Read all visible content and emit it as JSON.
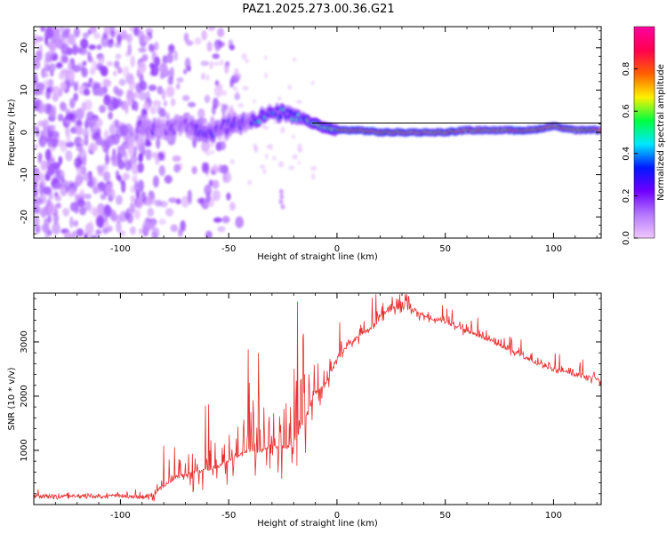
{
  "title": "PAZ1.2025.273.00.36.G21",
  "chart_data": [
    {
      "type": "heatmap",
      "xlabel": "Height of straight line (km)",
      "ylabel": "Frequency (Hz)",
      "xlim": [
        -140,
        122
      ],
      "ylim": [
        -25,
        25
      ],
      "xticks": [
        -100,
        -50,
        0,
        50,
        100
      ],
      "yticks": [
        -20,
        -10,
        0,
        10,
        20
      ],
      "ridge": {
        "x": [
          -140,
          -120,
          -100,
          -90,
          -80,
          -70,
          -60,
          -50,
          -40,
          -30,
          -25,
          -20,
          -15,
          -10,
          -5,
          0,
          10,
          20,
          30,
          40,
          50,
          60,
          70,
          80,
          90,
          100,
          110,
          122
        ],
        "frequency": [
          0,
          0,
          0,
          1,
          1,
          1.5,
          -0.5,
          1.5,
          3,
          4.5,
          4.5,
          3.5,
          3,
          2,
          1,
          0.5,
          0.5,
          0,
          0,
          0,
          0,
          0.5,
          0.5,
          0.5,
          0.5,
          1.5,
          0.5,
          0.5
        ]
      },
      "colorbar": {
        "label": "Normalized spectral amplitude",
        "range": [
          0,
          1
        ],
        "ticks": [
          0.0,
          0.2,
          0.4,
          0.6,
          0.8
        ],
        "tick_labels": [
          "0.0",
          "0.2",
          "0.4",
          "0.6",
          "0.8"
        ],
        "colormap": [
          "#f0c8ff",
          "#b478ff",
          "#7000ff",
          "#0018ff",
          "#00e8ff",
          "#00ff40",
          "#fff000",
          "#ff6000",
          "#ff0050",
          "#ff00a0"
        ]
      },
      "grid": false
    },
    {
      "type": "line",
      "xlabel": "Height of straight line (km)",
      "ylabel": "SNR (10 * v/v)",
      "xlim": [
        -140,
        122
      ],
      "ylim": [
        0,
        3900
      ],
      "xticks": [
        -100,
        -50,
        0,
        50,
        100
      ],
      "yticks": [
        1000,
        2000,
        3000
      ],
      "color": "#e83030",
      "series": [
        {
          "name": "SNR",
          "x": [
            -140,
            -120,
            -100,
            -90,
            -85,
            -80,
            -75,
            -70,
            -65,
            -60,
            -55,
            -50,
            -45,
            -40,
            -35,
            -30,
            -25,
            -20,
            -15,
            -10,
            -5,
            0,
            5,
            10,
            15,
            20,
            25,
            30,
            35,
            40,
            45,
            50,
            60,
            70,
            80,
            90,
            100,
            110,
            122
          ],
          "values": [
            150,
            150,
            160,
            150,
            170,
            350,
            500,
            550,
            600,
            650,
            700,
            800,
            900,
            1000,
            1000,
            1100,
            1050,
            1100,
            1600,
            2050,
            2250,
            2700,
            2950,
            3100,
            3250,
            3500,
            3600,
            3650,
            3600,
            3500,
            3420,
            3380,
            3200,
            3050,
            2850,
            2650,
            2500,
            2400,
            2300
          ]
        }
      ],
      "noise": {
        "base": 40,
        "spike_scale": [
          [
            -140,
            60
          ],
          [
            -90,
            80
          ],
          [
            -80,
            500
          ],
          [
            -50,
            1100
          ],
          [
            -40,
            1300
          ],
          [
            -15,
            1700
          ],
          [
            -10,
            800
          ],
          [
            0,
            400
          ],
          [
            20,
            300
          ],
          [
            50,
            220
          ],
          [
            122,
            200
          ]
        ]
      },
      "grid": false
    }
  ]
}
